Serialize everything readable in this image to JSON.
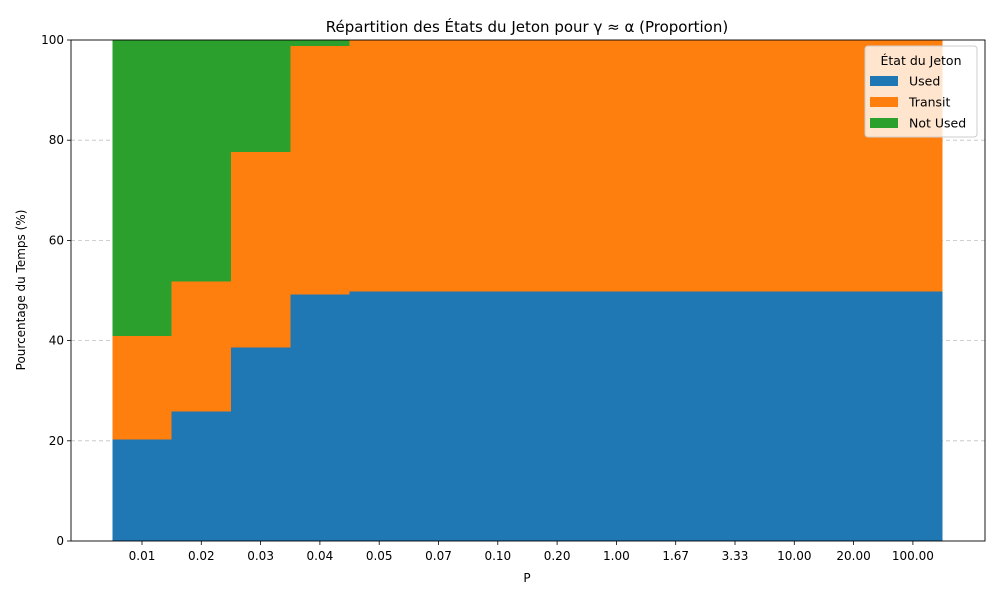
{
  "chart_data": {
    "type": "bar",
    "stacked": true,
    "title": "Répartition des États du Jeton pour γ ≈ α (Proportion)",
    "xlabel": "P",
    "ylabel": "Pourcentage du Temps (%)",
    "ylim": [
      0,
      100
    ],
    "yticks": [
      "0",
      "20",
      "40",
      "60",
      "80",
      "100"
    ],
    "grid": "horizontal dashed",
    "legend_title": "État du Jeton",
    "legend_position": "top-right",
    "categories": [
      "0.01",
      "0.02",
      "0.03",
      "0.04",
      "0.05",
      "0.07",
      "0.10",
      "0.20",
      "1.00",
      "1.67",
      "3.33",
      "10.00",
      "20.00",
      "100.00"
    ],
    "series": [
      {
        "name": "Used",
        "color": "#1f77b4",
        "values": [
          20.3,
          25.8,
          38.6,
          49.2,
          49.8,
          49.8,
          49.8,
          49.8,
          49.8,
          49.8,
          49.8,
          49.8,
          49.8,
          49.8
        ]
      },
      {
        "name": "Transit",
        "color": "#ff7f0e",
        "values": [
          20.6,
          26.0,
          39.0,
          49.6,
          50.2,
          50.2,
          50.2,
          50.2,
          50.2,
          50.2,
          50.2,
          50.2,
          50.2,
          50.2
        ]
      },
      {
        "name": "Not Used",
        "color": "#2ca02c",
        "values": [
          59.1,
          48.2,
          22.4,
          1.2,
          0.0,
          0.0,
          0.0,
          0.0,
          0.0,
          0.0,
          0.0,
          0.0,
          0.0,
          0.0
        ]
      }
    ]
  }
}
